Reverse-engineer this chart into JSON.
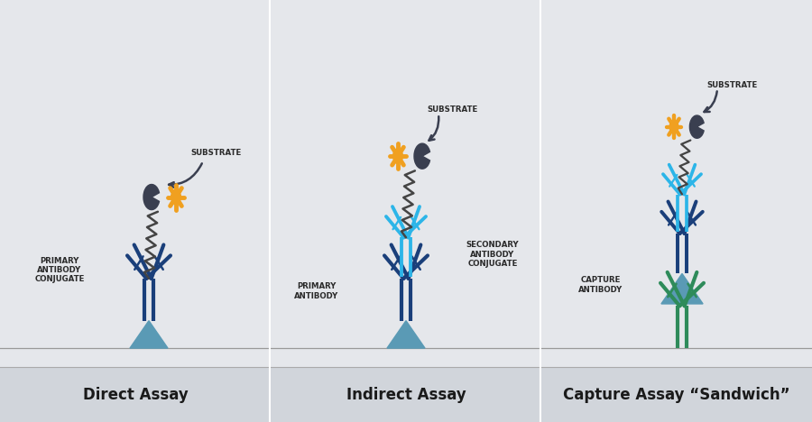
{
  "bg_color": "#e5e7eb",
  "bottom_bg": "#d1d5db",
  "title_font_size": 12,
  "label_font_size": 6.2,
  "title_color": "#1a1a1a",
  "label_color": "#2a2a2a",
  "dark_blue": "#1a3f7a",
  "light_blue": "#2cb5e8",
  "teal_green": "#2e8b5a",
  "antigen_color": "#5a9ab5",
  "pacman_color": "#3a3f50",
  "gear_color": "#f0a020",
  "zigzag_color": "#444444",
  "panels": [
    "Direct Assay",
    "Indirect Assay",
    "Capture Assay “Sandwich”"
  ],
  "panel_titles": [
    "Direct Assay",
    "Indirect Assay",
    "Capture Assay “Sandwich”"
  ]
}
